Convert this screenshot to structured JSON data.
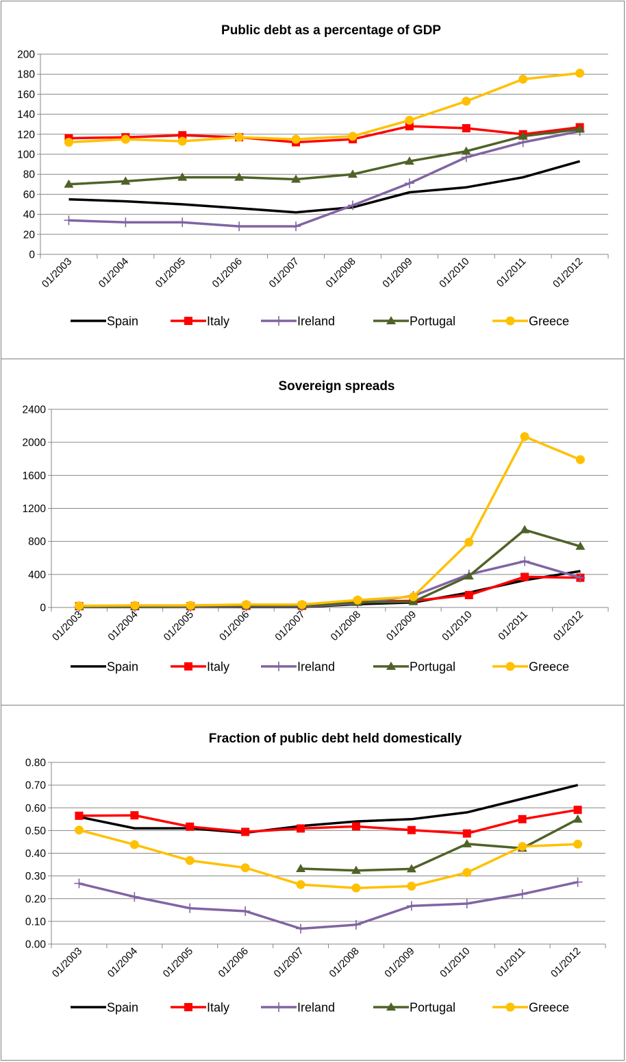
{
  "series_styles": [
    {
      "name": "Spain",
      "color": "#000000",
      "marker": "none"
    },
    {
      "name": "Italy",
      "color": "#ff0000",
      "marker": "square"
    },
    {
      "name": "Ireland",
      "color": "#8064a2",
      "marker": "plus"
    },
    {
      "name": "Portugal",
      "color": "#4f6228",
      "marker": "triangle"
    },
    {
      "name": "Greece",
      "color": "#ffc000",
      "marker": "circle"
    }
  ],
  "chart_data": [
    {
      "type": "line",
      "title": "Public debt as a percentage of GDP",
      "xlabel": "",
      "ylabel": "",
      "categories": [
        "01/2003",
        "01/2004",
        "01/2005",
        "01/2006",
        "01/2007",
        "01/2008",
        "01/2009",
        "01/2010",
        "01/2011",
        "01/2012"
      ],
      "ylim": [
        0,
        200
      ],
      "yticks": [
        "0",
        "20",
        "40",
        "60",
        "80",
        "100",
        "120",
        "140",
        "160",
        "180",
        "200"
      ],
      "grid": true,
      "legend": "bottom",
      "series": [
        {
          "name": "Spain",
          "values": [
            55,
            53,
            50,
            46,
            42,
            47,
            62,
            67,
            77,
            93
          ]
        },
        {
          "name": "Italy",
          "values": [
            116,
            117,
            119,
            117,
            112,
            115,
            128,
            126,
            120,
            127
          ]
        },
        {
          "name": "Ireland",
          "values": [
            34,
            32,
            32,
            28,
            28,
            49,
            71,
            97,
            112,
            123
          ]
        },
        {
          "name": "Portugal",
          "values": [
            70,
            73,
            77,
            77,
            75,
            80,
            93,
            103,
            118,
            125
          ]
        },
        {
          "name": "Greece",
          "values": [
            112,
            115,
            113,
            117,
            115,
            118,
            134,
            153,
            175,
            181
          ]
        }
      ]
    },
    {
      "type": "line",
      "title": "Sovereign spreads",
      "xlabel": "",
      "ylabel": "",
      "categories": [
        "01/2003",
        "01/2004",
        "01/2005",
        "01/2006",
        "01/2007",
        "01/2008",
        "01/2009",
        "01/2010",
        "01/2011",
        "01/2012"
      ],
      "ylim": [
        0,
        2400
      ],
      "yticks": [
        "0",
        "400",
        "800",
        "1200",
        "1600",
        "2000",
        "2400"
      ],
      "grid": true,
      "legend": "bottom",
      "series": [
        {
          "name": "Spain",
          "values": [
            5,
            5,
            5,
            5,
            5,
            40,
            60,
            180,
            330,
            440
          ]
        },
        {
          "name": "Italy",
          "values": [
            15,
            15,
            15,
            20,
            20,
            70,
            80,
            150,
            370,
            360
          ]
        },
        {
          "name": "Ireland",
          "values": [
            5,
            5,
            5,
            10,
            10,
            50,
            140,
            400,
            560,
            360
          ]
        },
        {
          "name": "Portugal",
          "values": [
            10,
            10,
            15,
            20,
            20,
            60,
            70,
            380,
            940,
            740
          ]
        },
        {
          "name": "Greece",
          "values": [
            20,
            25,
            25,
            35,
            35,
            90,
            130,
            790,
            2070,
            1790
          ]
        }
      ]
    },
    {
      "type": "line",
      "title": "Fraction of public debt held domestically",
      "xlabel": "",
      "ylabel": "",
      "categories": [
        "01/2003",
        "01/2004",
        "01/2005",
        "01/2006",
        "01/2007",
        "01/2008",
        "01/2009",
        "01/2010",
        "01/2011",
        "01/2012"
      ],
      "ylim": [
        0,
        0.8
      ],
      "yticks": [
        "0.00",
        "0.10",
        "0.20",
        "0.30",
        "0.40",
        "0.50",
        "0.60",
        "0.70",
        "0.80"
      ],
      "grid": true,
      "legend": "bottom",
      "series": [
        {
          "name": "Spain",
          "values": [
            0.56,
            0.51,
            0.51,
            0.49,
            0.52,
            0.54,
            0.55,
            0.58,
            0.64,
            0.7
          ]
        },
        {
          "name": "Italy",
          "values": [
            0.565,
            0.567,
            0.517,
            0.494,
            0.509,
            0.518,
            0.502,
            0.487,
            0.55,
            0.591
          ]
        },
        {
          "name": "Ireland",
          "values": [
            0.267,
            0.208,
            0.158,
            0.145,
            0.068,
            0.085,
            0.168,
            0.178,
            0.22,
            0.273
          ]
        },
        {
          "name": "Portugal",
          "values": [
            null,
            null,
            null,
            null,
            0.332,
            0.324,
            0.331,
            0.441,
            0.422,
            0.55
          ]
        },
        {
          "name": "Greece",
          "values": [
            0.502,
            0.438,
            0.368,
            0.336,
            0.262,
            0.247,
            0.255,
            0.315,
            0.43,
            0.44
          ]
        }
      ]
    }
  ]
}
